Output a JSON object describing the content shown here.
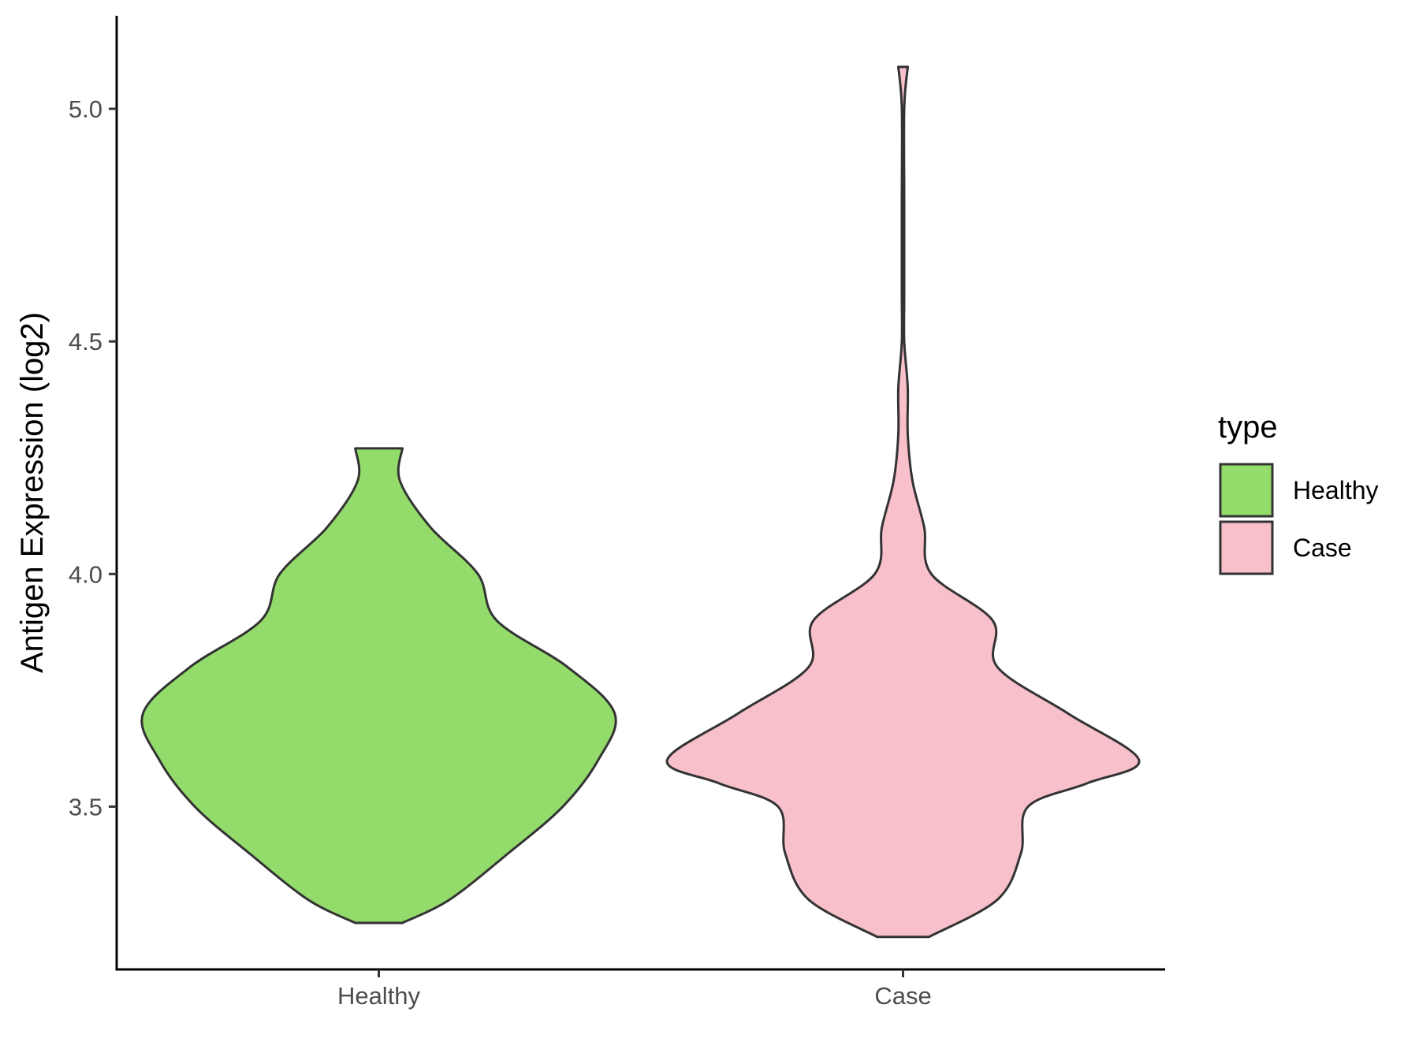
{
  "chart_data": {
    "type": "violin",
    "title": "",
    "xlabel": "",
    "ylabel": "Antigen Expression (log2)",
    "ylim": [
      3.15,
      5.2
    ],
    "yticks": [
      3.5,
      4.0,
      4.5,
      5.0
    ],
    "ytick_labels": [
      "3.5",
      "4.0",
      "4.5",
      "5.0"
    ],
    "categories": [
      "Healthy",
      "Case"
    ],
    "grid": false,
    "legend": {
      "title": "type",
      "position": "right",
      "entries": [
        "Healthy",
        "Case"
      ]
    },
    "series": [
      {
        "name": "Healthy",
        "color": "#93dc6b",
        "min": 3.25,
        "max": 4.27,
        "density_profile": [
          [
            3.25,
            0.1
          ],
          [
            3.3,
            0.3
          ],
          [
            3.4,
            0.55
          ],
          [
            3.5,
            0.78
          ],
          [
            3.6,
            0.93
          ],
          [
            3.7,
            1.0
          ],
          [
            3.8,
            0.8
          ],
          [
            3.9,
            0.5
          ],
          [
            4.0,
            0.42
          ],
          [
            4.1,
            0.22
          ],
          [
            4.2,
            0.09
          ],
          [
            4.27,
            0.1
          ]
        ]
      },
      {
        "name": "Case",
        "color": "#f8c0cb",
        "min": 3.22,
        "max": 5.09,
        "density_profile": [
          [
            3.22,
            0.11
          ],
          [
            3.3,
            0.4
          ],
          [
            3.4,
            0.5
          ],
          [
            3.5,
            0.53
          ],
          [
            3.55,
            0.78
          ],
          [
            3.6,
            1.0
          ],
          [
            3.7,
            0.7
          ],
          [
            3.8,
            0.4
          ],
          [
            3.9,
            0.38
          ],
          [
            4.0,
            0.12
          ],
          [
            4.1,
            0.09
          ],
          [
            4.2,
            0.04
          ],
          [
            4.3,
            0.02
          ],
          [
            4.4,
            0.02
          ],
          [
            4.5,
            0.005
          ],
          [
            4.6,
            0.004
          ],
          [
            4.8,
            0.004
          ],
          [
            5.0,
            0.004
          ],
          [
            5.09,
            0.02
          ]
        ]
      }
    ]
  }
}
